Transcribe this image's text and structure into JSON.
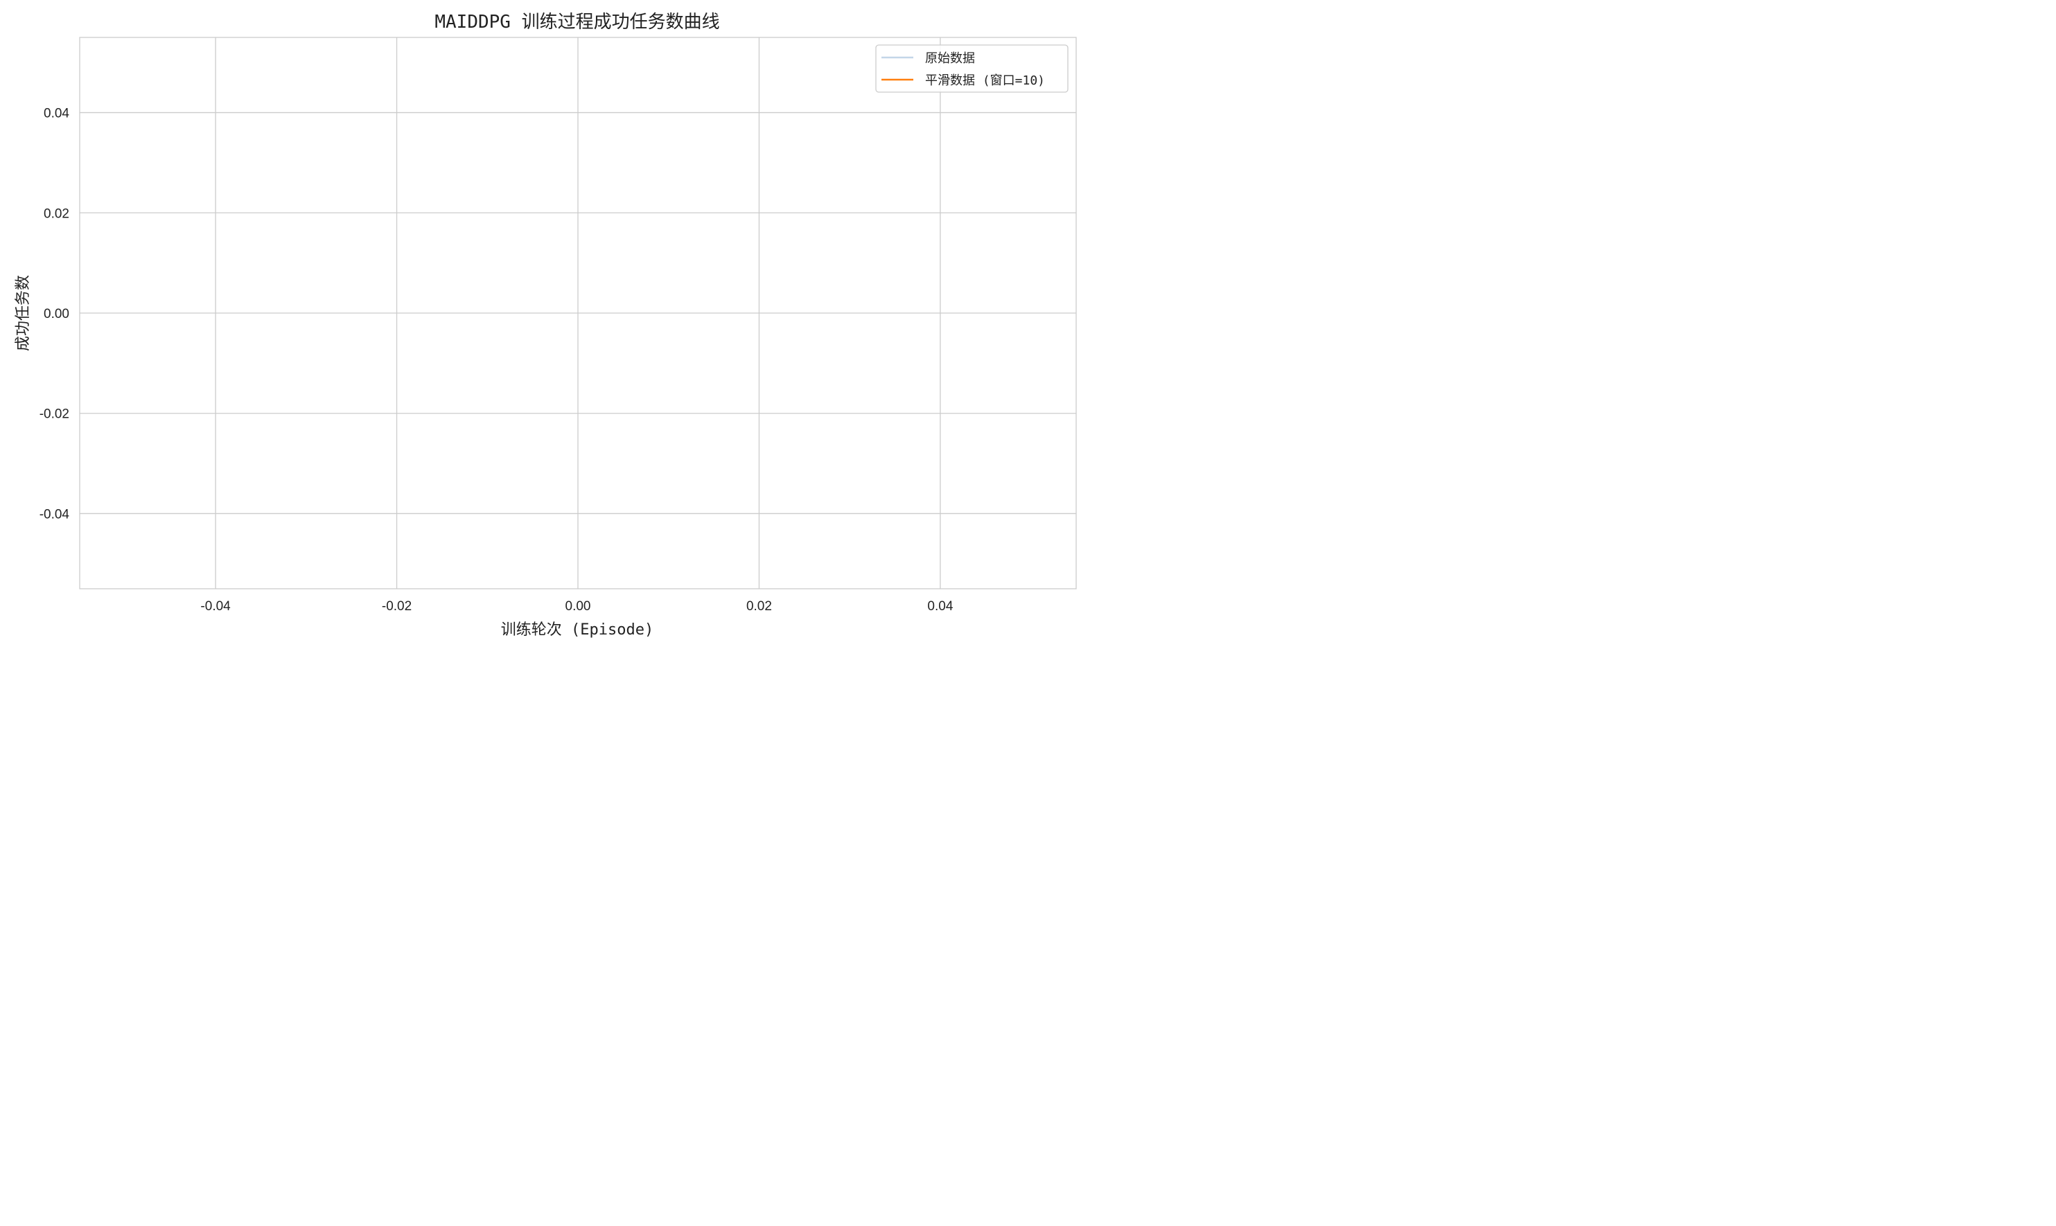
{
  "chart_data": {
    "type": "line",
    "title": "MAIDDPG 训练过程成功任务数曲线",
    "xlabel": "训练轮次 (Episode)",
    "ylabel": "成功任务数",
    "xlim": [
      -0.055,
      0.055
    ],
    "ylim": [
      -0.055,
      0.055
    ],
    "xticks": [
      "-0.04",
      "-0.02",
      "0.00",
      "0.02",
      "0.04"
    ],
    "yticks": [
      "0.04",
      "0.02",
      "0.00",
      "-0.02",
      "-0.04"
    ],
    "grid": true,
    "legend_position": "top-right",
    "series": [
      {
        "name": "原始数据",
        "color": "#c3d6e8",
        "x": [],
        "y": []
      },
      {
        "name": "平滑数据 (窗口=10)",
        "color": "#ff7f0e",
        "x": [],
        "y": []
      }
    ]
  }
}
